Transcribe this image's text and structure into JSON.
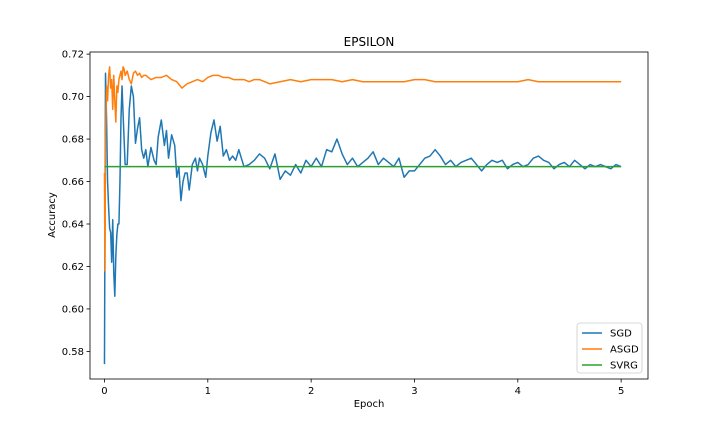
{
  "chart_data": {
    "type": "line",
    "title": "EPSILON",
    "xlabel": "Epoch",
    "ylabel": "Accuracy",
    "xlim": [
      -0.14,
      5.26
    ],
    "ylim": [
      0.567,
      0.721
    ],
    "xticks": [
      0,
      1,
      2,
      3,
      4,
      5
    ],
    "xtick_labels": [
      "0",
      "1",
      "2",
      "3",
      "4",
      "5"
    ],
    "yticks": [
      0.58,
      0.6,
      0.62,
      0.64,
      0.66,
      0.68,
      0.7,
      0.72
    ],
    "ytick_labels": [
      "0.58",
      "0.60",
      "0.62",
      "0.64",
      "0.66",
      "0.68",
      "0.70",
      "0.72"
    ],
    "grid": false,
    "legend_position": "lower-right",
    "series": [
      {
        "name": "SGD",
        "color": "#1f77b4",
        "x": [
          0.0,
          0.01,
          0.02,
          0.03,
          0.04,
          0.05,
          0.06,
          0.07,
          0.08,
          0.09,
          0.1,
          0.11,
          0.12,
          0.13,
          0.14,
          0.15,
          0.16,
          0.17,
          0.18,
          0.2,
          0.22,
          0.24,
          0.26,
          0.28,
          0.3,
          0.32,
          0.34,
          0.36,
          0.38,
          0.4,
          0.42,
          0.45,
          0.48,
          0.5,
          0.52,
          0.55,
          0.58,
          0.6,
          0.62,
          0.65,
          0.68,
          0.7,
          0.72,
          0.74,
          0.76,
          0.78,
          0.8,
          0.82,
          0.85,
          0.88,
          0.9,
          0.92,
          0.95,
          0.98,
          1.0,
          1.03,
          1.06,
          1.09,
          1.12,
          1.15,
          1.18,
          1.21,
          1.24,
          1.27,
          1.3,
          1.35,
          1.4,
          1.45,
          1.5,
          1.55,
          1.6,
          1.65,
          1.7,
          1.75,
          1.8,
          1.85,
          1.9,
          1.95,
          2.0,
          2.05,
          2.1,
          2.15,
          2.2,
          2.25,
          2.3,
          2.35,
          2.4,
          2.45,
          2.5,
          2.55,
          2.6,
          2.65,
          2.7,
          2.75,
          2.8,
          2.85,
          2.9,
          2.95,
          3.0,
          3.05,
          3.1,
          3.15,
          3.2,
          3.25,
          3.3,
          3.35,
          3.4,
          3.45,
          3.5,
          3.55,
          3.6,
          3.65,
          3.7,
          3.75,
          3.8,
          3.85,
          3.9,
          3.95,
          4.0,
          4.05,
          4.1,
          4.15,
          4.2,
          4.25,
          4.3,
          4.35,
          4.4,
          4.45,
          4.5,
          4.55,
          4.6,
          4.65,
          4.7,
          4.75,
          4.8,
          4.85,
          4.9,
          4.95,
          5.0
        ],
        "y": [
          0.574,
          0.711,
          0.69,
          0.66,
          0.648,
          0.638,
          0.636,
          0.622,
          0.642,
          0.617,
          0.606,
          0.625,
          0.635,
          0.64,
          0.64,
          0.66,
          0.69,
          0.705,
          0.692,
          0.668,
          0.668,
          0.694,
          0.705,
          0.7,
          0.678,
          0.685,
          0.69,
          0.675,
          0.671,
          0.675,
          0.667,
          0.676,
          0.67,
          0.668,
          0.681,
          0.689,
          0.677,
          0.684,
          0.671,
          0.682,
          0.677,
          0.662,
          0.667,
          0.651,
          0.66,
          0.664,
          0.664,
          0.656,
          0.668,
          0.671,
          0.665,
          0.671,
          0.668,
          0.662,
          0.672,
          0.683,
          0.689,
          0.679,
          0.686,
          0.672,
          0.675,
          0.67,
          0.672,
          0.67,
          0.675,
          0.667,
          0.668,
          0.67,
          0.673,
          0.671,
          0.666,
          0.673,
          0.661,
          0.665,
          0.663,
          0.668,
          0.664,
          0.67,
          0.667,
          0.671,
          0.667,
          0.675,
          0.674,
          0.68,
          0.673,
          0.668,
          0.671,
          0.667,
          0.669,
          0.671,
          0.674,
          0.668,
          0.671,
          0.669,
          0.667,
          0.671,
          0.662,
          0.665,
          0.665,
          0.668,
          0.671,
          0.672,
          0.675,
          0.672,
          0.668,
          0.67,
          0.667,
          0.669,
          0.67,
          0.671,
          0.668,
          0.665,
          0.668,
          0.67,
          0.669,
          0.67,
          0.666,
          0.668,
          0.669,
          0.667,
          0.668,
          0.671,
          0.672,
          0.67,
          0.669,
          0.666,
          0.668,
          0.669,
          0.667,
          0.67,
          0.668,
          0.666,
          0.668,
          0.667,
          0.668,
          0.667,
          0.666,
          0.668,
          0.667
        ]
      },
      {
        "name": "ASGD",
        "color": "#ff7f0e",
        "x": [
          0.0,
          0.005,
          0.01,
          0.02,
          0.03,
          0.04,
          0.05,
          0.06,
          0.07,
          0.08,
          0.09,
          0.1,
          0.11,
          0.12,
          0.13,
          0.14,
          0.15,
          0.16,
          0.17,
          0.18,
          0.19,
          0.2,
          0.22,
          0.24,
          0.26,
          0.28,
          0.3,
          0.32,
          0.34,
          0.36,
          0.38,
          0.4,
          0.45,
          0.5,
          0.55,
          0.6,
          0.65,
          0.7,
          0.75,
          0.8,
          0.85,
          0.9,
          0.95,
          1.0,
          1.05,
          1.1,
          1.15,
          1.2,
          1.25,
          1.3,
          1.35,
          1.4,
          1.45,
          1.5,
          1.55,
          1.6,
          1.7,
          1.8,
          1.9,
          2.0,
          2.1,
          2.2,
          2.3,
          2.4,
          2.5,
          2.6,
          2.7,
          2.8,
          2.9,
          3.0,
          3.1,
          3.2,
          3.3,
          3.4,
          3.5,
          3.6,
          3.7,
          3.8,
          3.9,
          4.0,
          4.1,
          4.2,
          4.3,
          4.4,
          4.5,
          4.6,
          4.7,
          4.8,
          4.9,
          5.0
        ],
        "y": [
          0.664,
          0.618,
          0.68,
          0.705,
          0.698,
          0.71,
          0.714,
          0.704,
          0.708,
          0.694,
          0.71,
          0.698,
          0.688,
          0.705,
          0.702,
          0.708,
          0.71,
          0.712,
          0.708,
          0.714,
          0.713,
          0.71,
          0.712,
          0.708,
          0.706,
          0.711,
          0.712,
          0.71,
          0.711,
          0.709,
          0.71,
          0.71,
          0.708,
          0.709,
          0.709,
          0.71,
          0.708,
          0.707,
          0.704,
          0.706,
          0.707,
          0.708,
          0.707,
          0.709,
          0.71,
          0.71,
          0.709,
          0.709,
          0.708,
          0.708,
          0.708,
          0.707,
          0.708,
          0.708,
          0.707,
          0.706,
          0.707,
          0.708,
          0.707,
          0.708,
          0.708,
          0.708,
          0.707,
          0.708,
          0.707,
          0.707,
          0.707,
          0.707,
          0.707,
          0.708,
          0.708,
          0.707,
          0.707,
          0.707,
          0.707,
          0.707,
          0.707,
          0.707,
          0.707,
          0.707,
          0.708,
          0.707,
          0.707,
          0.707,
          0.707,
          0.707,
          0.707,
          0.707,
          0.707,
          0.707
        ]
      },
      {
        "name": "SVRG",
        "color": "#2ca02c",
        "x": [
          0.0,
          5.0
        ],
        "y": [
          0.667,
          0.667
        ]
      }
    ]
  }
}
